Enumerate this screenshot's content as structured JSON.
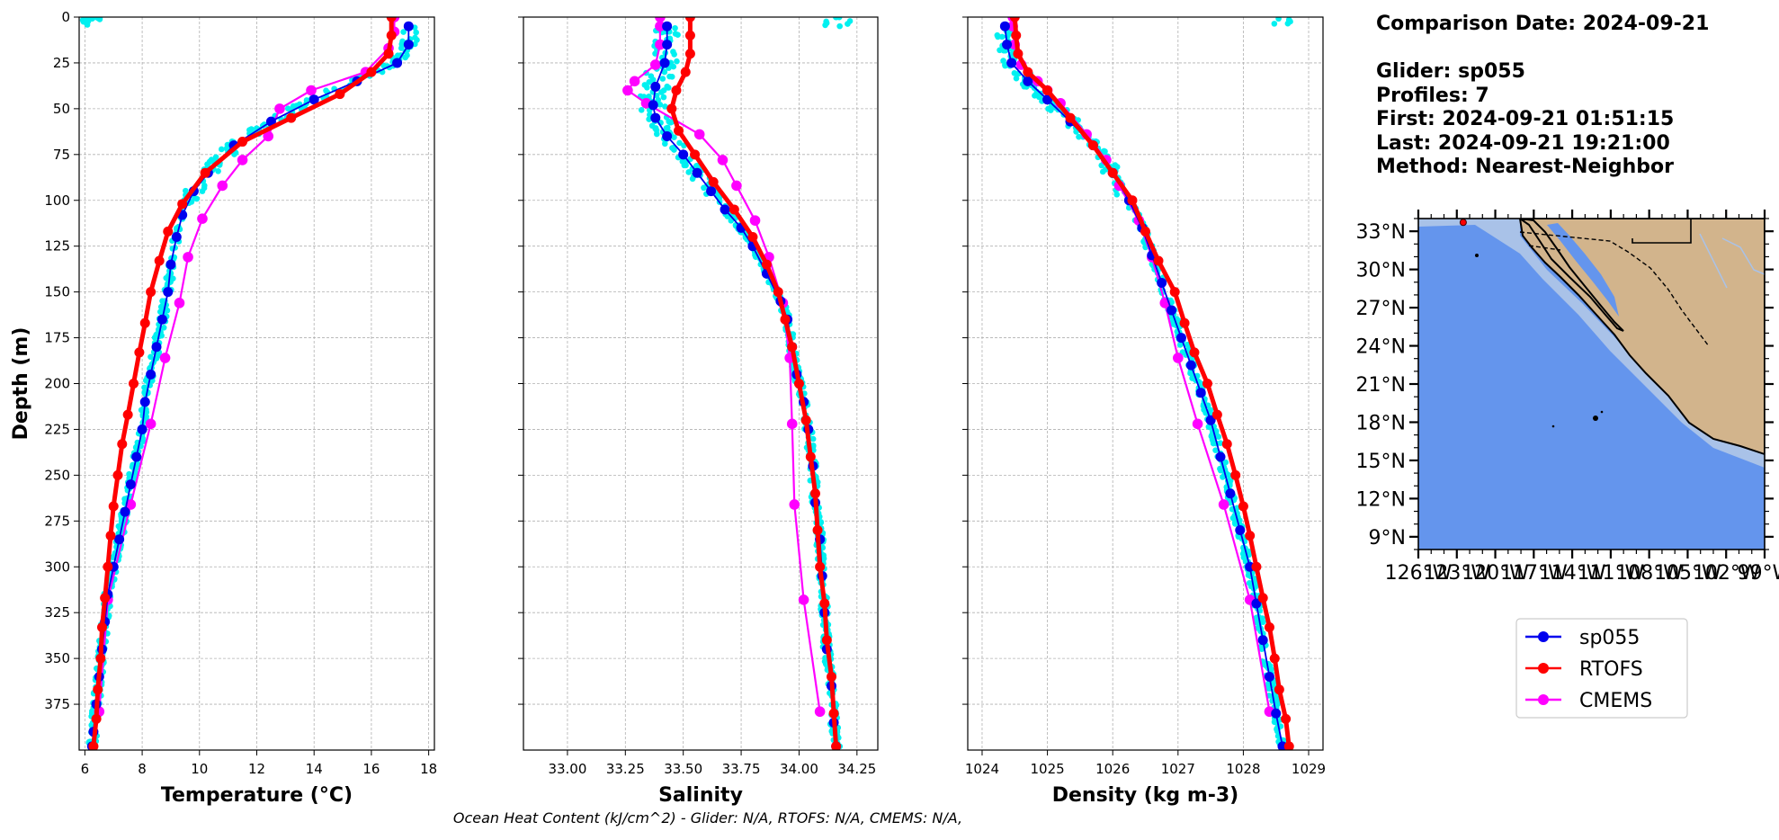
{
  "info": {
    "comparison_date": "Comparison Date: 2024-09-21",
    "glider": "Glider: sp055",
    "profiles": "Profiles: 7",
    "first": "First: 2024-09-21 01:51:15",
    "last": "Last: 2024-09-21 19:21:00",
    "method": "Method: Nearest-Neighbor"
  },
  "footer_note": "Ocean Heat Content (kJ/cm^2) - Glider: N/A,  RTOFS: N/A,  CMEMS: N/A,",
  "colors": {
    "glider": "#0000ee",
    "rtofs": "#ff0000",
    "cmems": "#ff00ff",
    "raw": "#00f0f0",
    "ocean": "#6495ed",
    "shelf": "#a9c2e8",
    "land": "#d2b48c"
  },
  "legend": {
    "placement": "below-map",
    "entries": [
      "sp055",
      "RTOFS",
      "CMEMS"
    ]
  },
  "chart_data": [
    {
      "type": "line",
      "xlabel": "Temperature (°C)",
      "ylabel": "Depth (m)",
      "xlim": [
        5.8,
        18.2
      ],
      "ylim": [
        400,
        0
      ],
      "xticks": [
        6,
        8,
        10,
        12,
        14,
        16,
        18
      ],
      "yticks": [
        0,
        25,
        50,
        75,
        100,
        125,
        150,
        175,
        200,
        225,
        250,
        275,
        300,
        325,
        350,
        375
      ],
      "grid": true,
      "series": [
        {
          "name": "sp055",
          "points": [
            [
              17.3,
              5
            ],
            [
              17.3,
              15
            ],
            [
              16.9,
              25
            ],
            [
              15.5,
              35
            ],
            [
              14.0,
              45
            ],
            [
              12.5,
              57
            ],
            [
              11.2,
              70
            ],
            [
              10.3,
              85
            ],
            [
              9.8,
              95
            ],
            [
              9.4,
              108
            ],
            [
              9.2,
              120
            ],
            [
              9.0,
              135
            ],
            [
              8.9,
              150
            ],
            [
              8.7,
              165
            ],
            [
              8.5,
              180
            ],
            [
              8.3,
              195
            ],
            [
              8.1,
              210
            ],
            [
              8.0,
              225
            ],
            [
              7.8,
              240
            ],
            [
              7.6,
              255
            ],
            [
              7.4,
              270
            ],
            [
              7.2,
              285
            ],
            [
              7.0,
              300
            ],
            [
              6.8,
              315
            ],
            [
              6.7,
              330
            ],
            [
              6.6,
              345
            ],
            [
              6.5,
              360
            ],
            [
              6.4,
              375
            ],
            [
              6.3,
              390
            ],
            [
              6.25,
              398
            ]
          ]
        },
        {
          "name": "RTOFS",
          "points": [
            [
              16.7,
              0
            ],
            [
              16.7,
              10
            ],
            [
              16.6,
              20
            ],
            [
              16.0,
              30
            ],
            [
              14.9,
              42
            ],
            [
              13.2,
              55
            ],
            [
              11.5,
              68
            ],
            [
              10.2,
              85
            ],
            [
              9.4,
              102
            ],
            [
              8.9,
              117
            ],
            [
              8.6,
              133
            ],
            [
              8.3,
              150
            ],
            [
              8.1,
              167
            ],
            [
              7.9,
              183
            ],
            [
              7.7,
              200
            ],
            [
              7.5,
              217
            ],
            [
              7.3,
              233
            ],
            [
              7.15,
              250
            ],
            [
              7.0,
              267
            ],
            [
              6.9,
              283
            ],
            [
              6.8,
              300
            ],
            [
              6.7,
              317
            ],
            [
              6.6,
              333
            ],
            [
              6.55,
              350
            ],
            [
              6.45,
              367
            ],
            [
              6.4,
              383
            ],
            [
              6.3,
              398
            ]
          ]
        },
        {
          "name": "CMEMS",
          "points": [
            [
              16.8,
              0
            ],
            [
              16.8,
              8
            ],
            [
              16.6,
              17
            ],
            [
              15.8,
              30
            ],
            [
              13.9,
              40
            ],
            [
              12.8,
              50
            ],
            [
              12.4,
              65
            ],
            [
              11.5,
              78
            ],
            [
              10.8,
              92
            ],
            [
              10.1,
              110
            ],
            [
              9.6,
              131
            ],
            [
              9.3,
              156
            ],
            [
              8.8,
              186
            ],
            [
              8.3,
              222
            ],
            [
              7.6,
              266
            ],
            [
              6.8,
              318
            ],
            [
              6.5,
              379
            ]
          ]
        }
      ],
      "raw_scatter": "cyan glider samples"
    },
    {
      "type": "line",
      "xlabel": "Salinity",
      "ylabel": "",
      "xlim": [
        32.81,
        34.34
      ],
      "ylim": [
        400,
        0
      ],
      "xticks": [
        33.0,
        33.25,
        33.5,
        33.75,
        34.0,
        34.25
      ],
      "grid": true,
      "series": [
        {
          "name": "sp055",
          "points": [
            [
              33.43,
              5
            ],
            [
              33.43,
              15
            ],
            [
              33.42,
              25
            ],
            [
              33.38,
              38
            ],
            [
              33.37,
              48
            ],
            [
              33.38,
              55
            ],
            [
              33.43,
              65
            ],
            [
              33.5,
              75
            ],
            [
              33.56,
              85
            ],
            [
              33.62,
              95
            ],
            [
              33.68,
              105
            ],
            [
              33.75,
              115
            ],
            [
              33.8,
              125
            ],
            [
              33.86,
              140
            ],
            [
              33.92,
              155
            ],
            [
              33.95,
              165
            ],
            [
              33.97,
              180
            ],
            [
              33.99,
              195
            ],
            [
              34.02,
              210
            ],
            [
              34.04,
              225
            ],
            [
              34.06,
              245
            ],
            [
              34.07,
              265
            ],
            [
              34.09,
              285
            ],
            [
              34.1,
              305
            ],
            [
              34.11,
              325
            ],
            [
              34.12,
              345
            ],
            [
              34.14,
              365
            ],
            [
              34.15,
              385
            ],
            [
              34.16,
              398
            ]
          ]
        },
        {
          "name": "RTOFS",
          "points": [
            [
              33.53,
              0
            ],
            [
              33.53,
              10
            ],
            [
              33.53,
              20
            ],
            [
              33.51,
              30
            ],
            [
              33.47,
              40
            ],
            [
              33.45,
              50
            ],
            [
              33.48,
              62
            ],
            [
              33.55,
              75
            ],
            [
              33.63,
              90
            ],
            [
              33.72,
              105
            ],
            [
              33.8,
              120
            ],
            [
              33.86,
              135
            ],
            [
              33.91,
              150
            ],
            [
              33.94,
              165
            ],
            [
              33.97,
              180
            ],
            [
              34.0,
              200
            ],
            [
              34.03,
              220
            ],
            [
              34.05,
              240
            ],
            [
              34.07,
              260
            ],
            [
              34.08,
              280
            ],
            [
              34.09,
              300
            ],
            [
              34.11,
              320
            ],
            [
              34.12,
              340
            ],
            [
              34.14,
              360
            ],
            [
              34.15,
              380
            ],
            [
              34.16,
              398
            ]
          ]
        },
        {
          "name": "CMEMS",
          "points": [
            [
              33.4,
              0
            ],
            [
              33.4,
              5
            ],
            [
              33.4,
              15
            ],
            [
              33.38,
              26
            ],
            [
              33.29,
              35
            ],
            [
              33.26,
              40
            ],
            [
              33.34,
              47
            ],
            [
              33.57,
              64
            ],
            [
              33.67,
              78
            ],
            [
              33.73,
              92
            ],
            [
              33.81,
              111
            ],
            [
              33.87,
              131
            ],
            [
              33.93,
              156
            ],
            [
              33.96,
              186
            ],
            [
              33.97,
              222
            ],
            [
              33.98,
              266
            ],
            [
              34.02,
              318
            ],
            [
              34.09,
              379
            ]
          ]
        }
      ],
      "raw_scatter": "cyan glider samples"
    },
    {
      "type": "line",
      "xlabel": "Density (kg m-3)",
      "ylabel": "",
      "xlim": [
        1023.78,
        1029.22
      ],
      "ylim": [
        400,
        0
      ],
      "xticks": [
        1024,
        1025,
        1026,
        1027,
        1028,
        1029
      ],
      "grid": true,
      "series": [
        {
          "name": "sp055",
          "points": [
            [
              1024.35,
              5
            ],
            [
              1024.38,
              15
            ],
            [
              1024.45,
              25
            ],
            [
              1024.7,
              35
            ],
            [
              1025.0,
              45
            ],
            [
              1025.35,
              57
            ],
            [
              1025.7,
              70
            ],
            [
              1026.0,
              85
            ],
            [
              1026.25,
              100
            ],
            [
              1026.45,
              115
            ],
            [
              1026.6,
              130
            ],
            [
              1026.75,
              145
            ],
            [
              1026.9,
              160
            ],
            [
              1027.05,
              175
            ],
            [
              1027.2,
              190
            ],
            [
              1027.35,
              205
            ],
            [
              1027.5,
              220
            ],
            [
              1027.65,
              240
            ],
            [
              1027.8,
              260
            ],
            [
              1027.95,
              280
            ],
            [
              1028.1,
              300
            ],
            [
              1028.2,
              320
            ],
            [
              1028.3,
              340
            ],
            [
              1028.4,
              360
            ],
            [
              1028.5,
              380
            ],
            [
              1028.6,
              398
            ]
          ]
        },
        {
          "name": "RTOFS",
          "points": [
            [
              1024.5,
              0
            ],
            [
              1024.52,
              10
            ],
            [
              1024.55,
              20
            ],
            [
              1024.7,
              30
            ],
            [
              1025.0,
              40
            ],
            [
              1025.35,
              55
            ],
            [
              1025.7,
              70
            ],
            [
              1026.0,
              85
            ],
            [
              1026.3,
              100
            ],
            [
              1026.5,
              117
            ],
            [
              1026.7,
              133
            ],
            [
              1026.95,
              150
            ],
            [
              1027.1,
              167
            ],
            [
              1027.25,
              183
            ],
            [
              1027.45,
              200
            ],
            [
              1027.6,
              217
            ],
            [
              1027.75,
              233
            ],
            [
              1027.88,
              250
            ],
            [
              1028.0,
              267
            ],
            [
              1028.1,
              283
            ],
            [
              1028.2,
              300
            ],
            [
              1028.3,
              317
            ],
            [
              1028.4,
              333
            ],
            [
              1028.48,
              350
            ],
            [
              1028.55,
              367
            ],
            [
              1028.65,
              383
            ],
            [
              1028.7,
              398
            ]
          ]
        },
        {
          "name": "CMEMS",
          "points": [
            [
              1024.47,
              0
            ],
            [
              1024.47,
              5
            ],
            [
              1024.5,
              15
            ],
            [
              1024.6,
              26
            ],
            [
              1024.85,
              35
            ],
            [
              1025.0,
              40
            ],
            [
              1025.2,
              47
            ],
            [
              1025.6,
              64
            ],
            [
              1025.9,
              78
            ],
            [
              1026.1,
              92
            ],
            [
              1026.4,
              111
            ],
            [
              1026.6,
              131
            ],
            [
              1026.8,
              156
            ],
            [
              1027.0,
              186
            ],
            [
              1027.3,
              222
            ],
            [
              1027.7,
              266
            ],
            [
              1028.1,
              318
            ],
            [
              1028.4,
              379
            ]
          ]
        }
      ],
      "raw_scatter": "cyan glider samples"
    }
  ],
  "map": {
    "lat_ticks": [
      "33°N",
      "30°N",
      "27°N",
      "24°N",
      "21°N",
      "18°N",
      "15°N",
      "12°N",
      "9°N"
    ],
    "lat_values": [
      33,
      30,
      27,
      24,
      21,
      18,
      15,
      12,
      9
    ],
    "lon_ticks": [
      "126°W",
      "123°W",
      "120°W",
      "117°W",
      "114°W",
      "111°W",
      "108°W",
      "105°W",
      "102°W",
      "99°W"
    ],
    "lon_values": [
      -126,
      -123,
      -120,
      -117,
      -114,
      -111,
      -108,
      -105,
      -102,
      -99
    ],
    "lon_range": [
      -126,
      -99
    ],
    "lat_range": [
      8,
      34
    ],
    "marker": {
      "lon": -122.5,
      "lat": 33.7
    }
  }
}
